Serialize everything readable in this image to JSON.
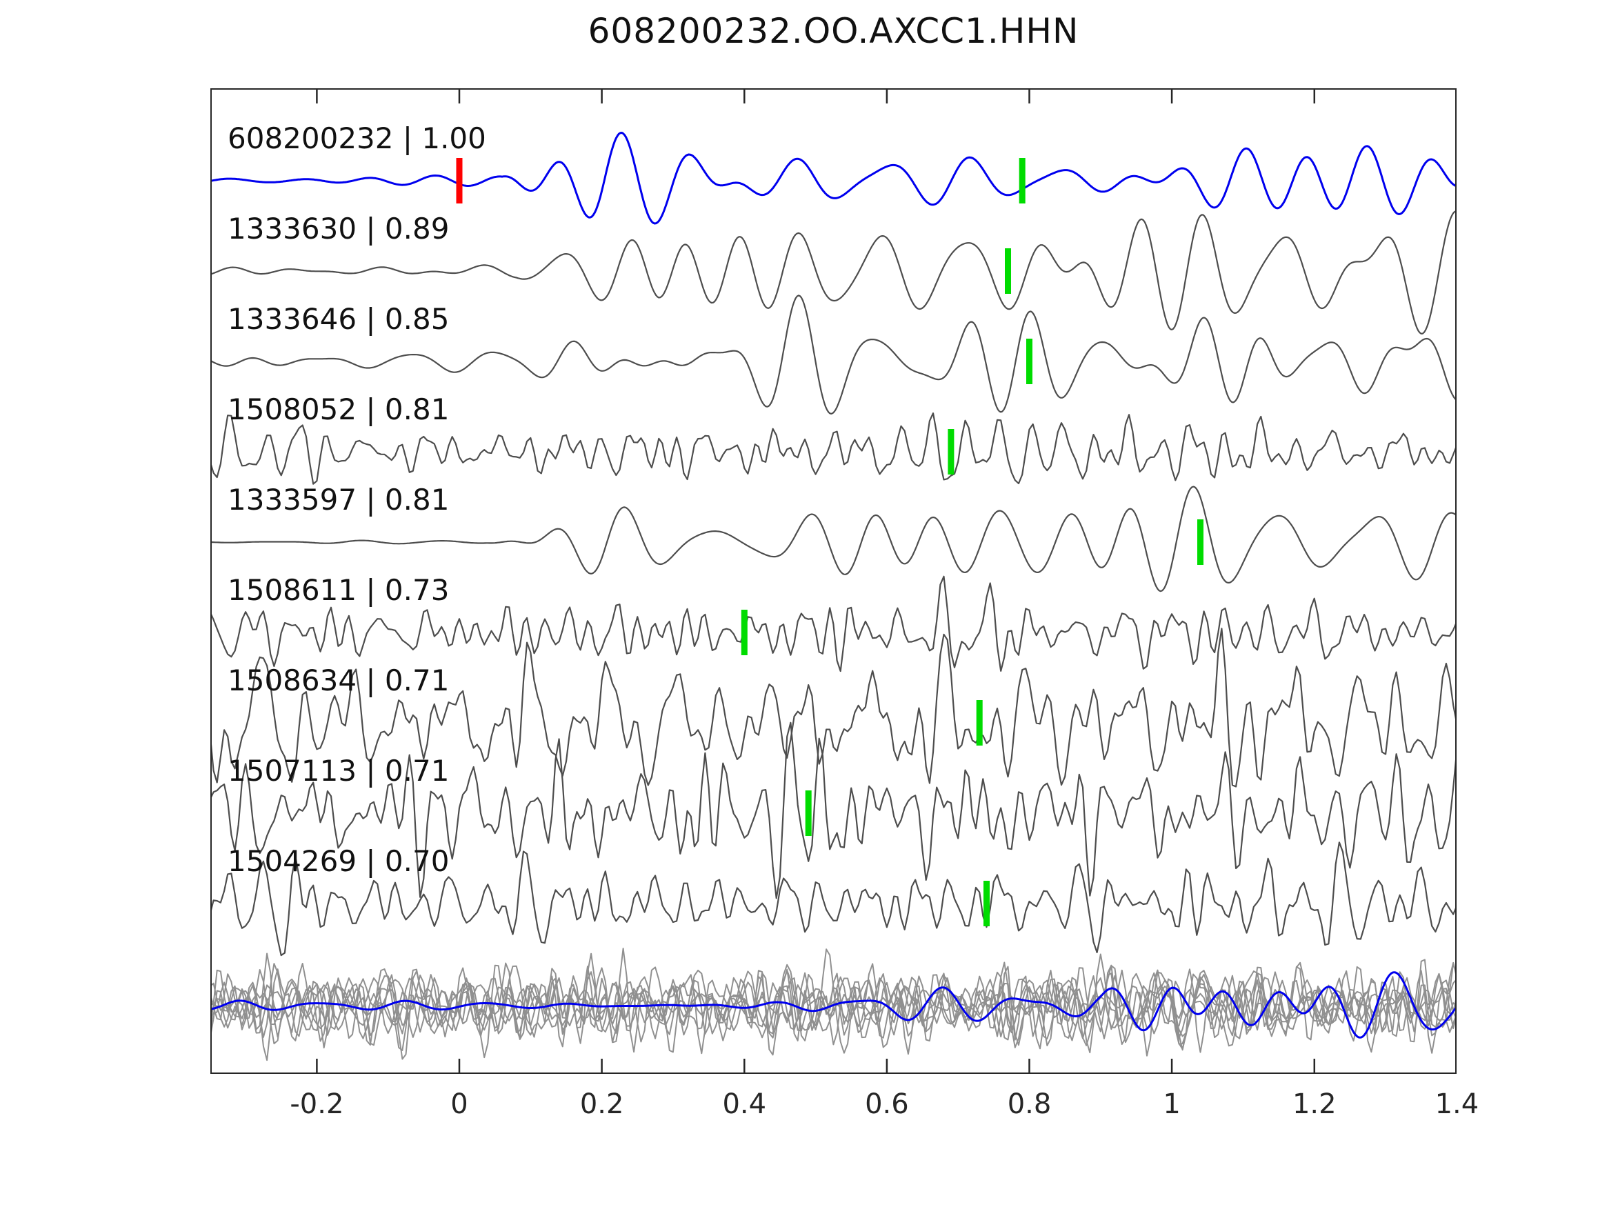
{
  "title": "608200232.OO.AXCC1.HHN",
  "chart_data": {
    "type": "line",
    "title": "608200232.OO.AXCC1.HHN",
    "xlabel": "",
    "ylabel": "",
    "xlim": [
      -0.35,
      1.4
    ],
    "grid": false,
    "legend": "inline trace labels, top-left of each trace",
    "xticks": [
      -0.2,
      0,
      0.2,
      0.4,
      0.6,
      0.8,
      1,
      1.2,
      1.4
    ],
    "xtick_labels": [
      "-0.2",
      "0",
      "0.2",
      "0.4",
      "0.6",
      "0.8",
      "1",
      "1.2",
      "1.4"
    ],
    "colors": {
      "template": "#0000ee",
      "match": "#4d4d4d",
      "overlay": "#909090",
      "pick": "#00dc00",
      "origin": "#ff0000",
      "frame": "#262626"
    },
    "traces": [
      {
        "id": "608200232",
        "correlation": 1.0,
        "label": "608200232 | 1.00",
        "color": "template",
        "style": "smooth",
        "picks": [
          {
            "t": 0.0,
            "color": "origin"
          },
          {
            "t": 0.79,
            "color": "pick"
          }
        ],
        "synthesis": {
          "seed": 11,
          "amp": 26,
          "fmin": 7,
          "fmax": 16,
          "comps": 7,
          "step": 0.002,
          "env": [
            [
              -0.35,
              0.1
            ],
            [
              0.06,
              0.12
            ],
            [
              0.2,
              1.0
            ],
            [
              0.95,
              1.0
            ],
            [
              1.08,
              1.5
            ],
            [
              1.4,
              1.25
            ]
          ]
        }
      },
      {
        "id": "1333630",
        "correlation": 0.89,
        "label": "1333630 | 0.89",
        "color": "match",
        "style": "smooth",
        "picks": [
          {
            "t": 0.77,
            "color": "pick"
          }
        ],
        "synthesis": {
          "seed": 22,
          "amp": 30,
          "fmin": 7,
          "fmax": 16,
          "comps": 7,
          "step": 0.002,
          "env": [
            [
              -0.35,
              0.12
            ],
            [
              0.08,
              0.18
            ],
            [
              0.28,
              1.0
            ],
            [
              0.95,
              1.1
            ],
            [
              1.1,
              1.45
            ],
            [
              1.4,
              1.2
            ]
          ]
        }
      },
      {
        "id": "1333646",
        "correlation": 0.85,
        "label": "1333646 | 0.85",
        "color": "match",
        "style": "smooth",
        "picks": [
          {
            "t": 0.8,
            "color": "pick"
          }
        ],
        "synthesis": {
          "seed": 33,
          "amp": 32,
          "fmin": 7,
          "fmax": 16,
          "comps": 7,
          "step": 0.002,
          "env": [
            [
              -0.35,
              0.15
            ],
            [
              0.08,
              0.2
            ],
            [
              0.3,
              1.0
            ],
            [
              1.0,
              1.1
            ],
            [
              1.15,
              1.4
            ],
            [
              1.4,
              1.2
            ]
          ]
        }
      },
      {
        "id": "1508052",
        "correlation": 0.81,
        "label": "1508052 | 0.81",
        "color": "match",
        "style": "noisy",
        "picks": [
          {
            "t": 0.69,
            "color": "pick"
          }
        ],
        "synthesis": {
          "seed": 44,
          "amp": 20,
          "fmin": 10,
          "fmax": 45,
          "comps": 14,
          "step": 0.005,
          "env": [
            [
              -0.35,
              0.9
            ],
            [
              0.0,
              0.8
            ],
            [
              0.7,
              1.0
            ],
            [
              1.4,
              1.0
            ]
          ]
        }
      },
      {
        "id": "1333597",
        "correlation": 0.81,
        "label": "1333597 | 0.81",
        "color": "match",
        "style": "smooth",
        "picks": [
          {
            "t": 1.04,
            "color": "pick"
          }
        ],
        "synthesis": {
          "seed": 55,
          "amp": 30,
          "fmin": 7,
          "fmax": 16,
          "comps": 7,
          "step": 0.002,
          "env": [
            [
              -0.35,
              0.03
            ],
            [
              0.04,
              0.05
            ],
            [
              0.2,
              0.8
            ],
            [
              0.7,
              1.0
            ],
            [
              1.05,
              1.45
            ],
            [
              1.4,
              1.1
            ]
          ]
        }
      },
      {
        "id": "1508611",
        "correlation": 0.73,
        "label": "1508611 | 0.73",
        "color": "match",
        "style": "noisy",
        "picks": [
          {
            "t": 0.4,
            "color": "pick"
          }
        ],
        "synthesis": {
          "seed": 66,
          "amp": 22,
          "fmin": 10,
          "fmax": 45,
          "comps": 14,
          "step": 0.005,
          "env": [
            [
              -0.35,
              0.9
            ],
            [
              0.5,
              1.0
            ],
            [
              1.4,
              0.95
            ]
          ]
        }
      },
      {
        "id": "1508634",
        "correlation": 0.71,
        "label": "1508634 | 0.71",
        "color": "match",
        "style": "noisy",
        "picks": [
          {
            "t": 0.73,
            "color": "pick"
          }
        ],
        "synthesis": {
          "seed": 77,
          "amp": 42,
          "fmin": 8,
          "fmax": 50,
          "comps": 16,
          "step": 0.005,
          "env": [
            [
              -0.35,
              1.0
            ],
            [
              1.4,
              1.0
            ]
          ]
        }
      },
      {
        "id": "1507113",
        "correlation": 0.71,
        "label": "1507113 | 0.71",
        "color": "match",
        "style": "noisy",
        "picks": [
          {
            "t": 0.49,
            "color": "pick"
          }
        ],
        "synthesis": {
          "seed": 88,
          "amp": 38,
          "fmin": 8,
          "fmax": 50,
          "comps": 16,
          "step": 0.005,
          "env": [
            [
              -0.35,
              1.0
            ],
            [
              1.4,
              1.0
            ]
          ]
        }
      },
      {
        "id": "1504269",
        "correlation": 0.7,
        "label": "1504269 | 0.70",
        "color": "match",
        "style": "noisy",
        "picks": [
          {
            "t": 0.74,
            "color": "pick"
          }
        ],
        "synthesis": {
          "seed": 99,
          "amp": 26,
          "fmin": 10,
          "fmax": 45,
          "comps": 14,
          "step": 0.005,
          "env": [
            [
              -0.35,
              1.0
            ],
            [
              0.6,
              0.85
            ],
            [
              1.1,
              1.1
            ],
            [
              1.4,
              0.9
            ]
          ]
        }
      }
    ],
    "overlay": {
      "description": "all matched traces superimposed in gray with blue template on top",
      "gray_count": 8,
      "gray_seeds": [
        101,
        102,
        103,
        104,
        105,
        106,
        107,
        108
      ],
      "gray_synthesis": {
        "amp": 26,
        "fmin": 12,
        "fmax": 48,
        "comps": 14,
        "step": 0.005,
        "env": [
          [
            -0.35,
            1.0
          ],
          [
            1.4,
            1.0
          ]
        ]
      },
      "blue_synthesis": {
        "seed": 110,
        "amp": 28,
        "fmin": 7,
        "fmax": 15,
        "comps": 6,
        "step": 0.002,
        "env": [
          [
            -0.35,
            0.12
          ],
          [
            0.45,
            0.12
          ],
          [
            0.62,
            0.4
          ],
          [
            0.9,
            0.35
          ],
          [
            1.02,
            1.3
          ],
          [
            1.18,
            1.5
          ],
          [
            1.4,
            0.9
          ]
        ]
      }
    }
  }
}
